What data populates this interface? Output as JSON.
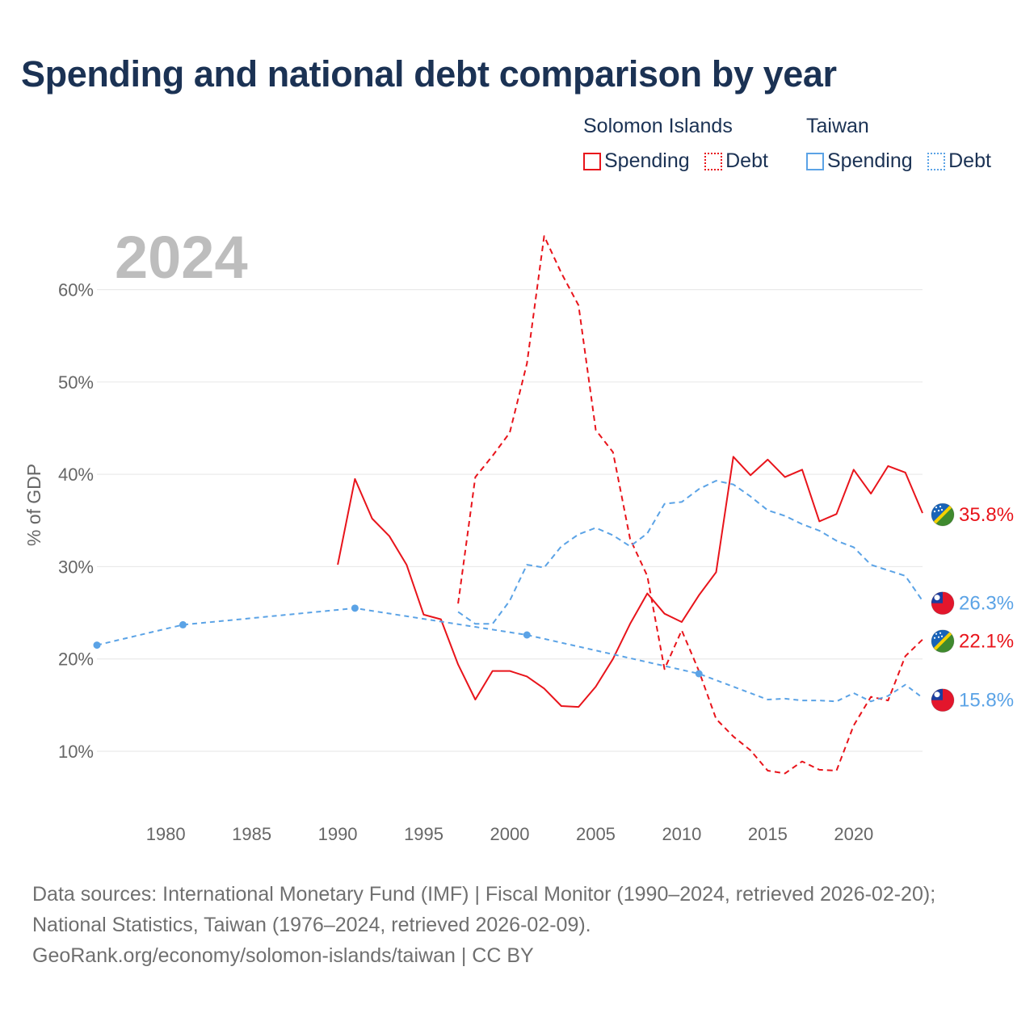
{
  "title": "Spending and national debt comparison by year",
  "legend": {
    "groups": [
      {
        "name": "Solomon Islands",
        "color": "#e8141b",
        "items": [
          "Spending",
          "Debt"
        ]
      },
      {
        "name": "Taiwan",
        "color": "#5ba3e6",
        "items": [
          "Spending",
          "Debt"
        ]
      }
    ]
  },
  "chart_data": {
    "type": "line",
    "year_label": "2024",
    "ylabel": "% of GDP",
    "xlim": [
      1976,
      2024
    ],
    "ylim": [
      3,
      66
    ],
    "xticks": [
      1980,
      1985,
      1990,
      1995,
      2000,
      2005,
      2010,
      2015,
      2020
    ],
    "xtick_labels": [
      "1980",
      "1985",
      "1990",
      "1995",
      "2000",
      "2005",
      "2010",
      "2015",
      "2020"
    ],
    "yticks": [
      10,
      20,
      30,
      40,
      50,
      60
    ],
    "ytick_labels": [
      "10%",
      "20%",
      "30%",
      "40%",
      "50%",
      "60%"
    ],
    "grid": true,
    "series": [
      {
        "name": "Solomon Islands Spending",
        "country": "Solomon Islands",
        "metric": "Spending",
        "color": "#e8141b",
        "dash": "solid",
        "x": [
          1990,
          1991,
          1992,
          1993,
          1994,
          1995,
          1996,
          1997,
          1998,
          1999,
          2000,
          2001,
          2002,
          2003,
          2004,
          2005,
          2006,
          2007,
          2008,
          2009,
          2010,
          2011,
          2012,
          2013,
          2014,
          2015,
          2016,
          2017,
          2018,
          2019,
          2020,
          2021,
          2022,
          2023,
          2024
        ],
        "y": [
          30.2,
          39.5,
          35.2,
          33.3,
          30.2,
          24.8,
          24.3,
          19.4,
          15.6,
          18.7,
          18.7,
          18.1,
          16.8,
          14.9,
          14.8,
          17.0,
          20.0,
          23.8,
          27.1,
          24.9,
          24.0,
          26.9,
          29.4,
          41.9,
          39.9,
          41.6,
          39.7,
          40.5,
          34.9,
          35.7,
          40.5,
          37.9,
          40.9,
          40.2,
          35.8
        ],
        "end_label": "35.8%"
      },
      {
        "name": "Solomon Islands Debt",
        "country": "Solomon Islands",
        "metric": "Debt",
        "color": "#e8141b",
        "dash": "dashed",
        "x": [
          1997,
          1998,
          1999,
          2000,
          2001,
          2002,
          2003,
          2004,
          2005,
          2006,
          2007,
          2008,
          2009,
          2010,
          2011,
          2012,
          2013,
          2014,
          2015,
          2016,
          2017,
          2018,
          2019,
          2020,
          2021,
          2022,
          2023,
          2024
        ],
        "y": [
          26.0,
          39.7,
          42.0,
          44.5,
          52.0,
          65.8,
          61.8,
          58.3,
          44.8,
          42.4,
          33.0,
          29.0,
          18.9,
          23.1,
          18.7,
          13.5,
          11.6,
          10.1,
          7.9,
          7.6,
          8.9,
          8.0,
          7.9,
          12.8,
          15.9,
          15.5,
          20.3,
          22.1
        ],
        "end_label": "22.1%"
      },
      {
        "name": "Taiwan Spending",
        "country": "Taiwan",
        "metric": "Spending",
        "color": "#5ba3e6",
        "dash": "dotted",
        "x": [
          1976,
          1981,
          1991,
          2001,
          2011,
          2015,
          2016,
          2017,
          2018,
          2019,
          2020,
          2021,
          2022,
          2023,
          2024
        ],
        "y": [
          21.5,
          23.7,
          25.5,
          22.6,
          18.4,
          15.6,
          15.7,
          15.5,
          15.5,
          15.4,
          16.3,
          15.4,
          16.0,
          17.2,
          15.8
        ],
        "markers": [
          1976,
          1981,
          1991,
          2001,
          2011
        ],
        "end_label": "15.8%"
      },
      {
        "name": "Taiwan Debt",
        "country": "Taiwan",
        "metric": "Debt",
        "color": "#5ba3e6",
        "dash": "dashed",
        "x": [
          1997,
          1998,
          1999,
          2000,
          2001,
          2002,
          2003,
          2004,
          2005,
          2006,
          2007,
          2008,
          2009,
          2010,
          2011,
          2012,
          2013,
          2014,
          2015,
          2016,
          2017,
          2018,
          2019,
          2020,
          2021,
          2022,
          2023,
          2024
        ],
        "y": [
          25.1,
          23.8,
          23.8,
          26.3,
          30.2,
          29.9,
          32.2,
          33.5,
          34.2,
          33.4,
          32.2,
          33.6,
          36.8,
          37.0,
          38.4,
          39.3,
          38.9,
          37.6,
          36.1,
          35.5,
          34.6,
          33.9,
          32.8,
          32.1,
          30.2,
          29.6,
          29.0,
          26.3
        ],
        "end_label": "26.3%"
      }
    ]
  },
  "sources": {
    "line1": "Data sources: International Monetary Fund (IMF) | Fiscal Monitor (1990–2024, retrieved 2026-02-20);",
    "line2": "National Statistics, Taiwan (1976–2024, retrieved 2026-02-09).",
    "line3": "GeoRank.org/economy/solomon-islands/taiwan | CC BY"
  }
}
